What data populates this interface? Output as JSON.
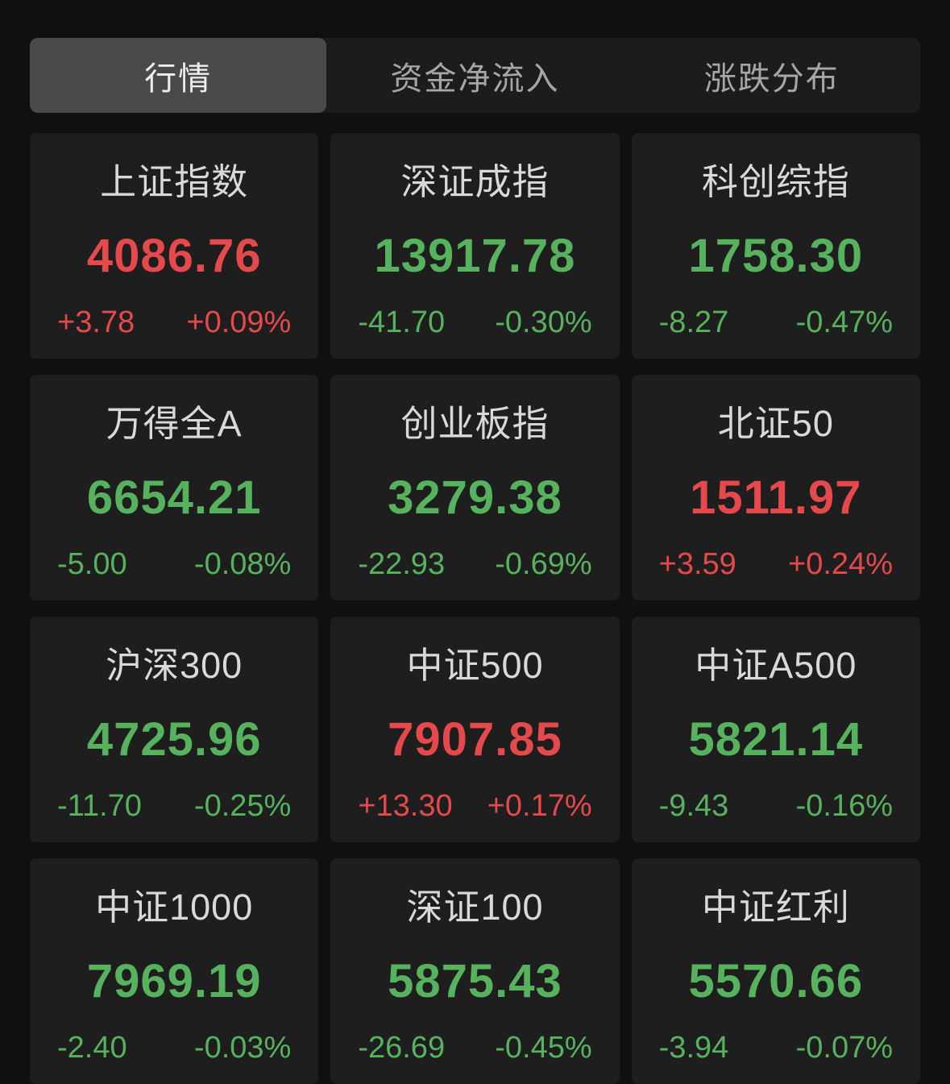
{
  "colors": {
    "up": "#e6494b",
    "down": "#57b25e",
    "card_bg": "#1e1e1e",
    "page_bg": "#101010",
    "tab_selected_bg": "#4a4a4a"
  },
  "tabs": [
    {
      "label": "行情",
      "selected": true
    },
    {
      "label": "资金净流入",
      "selected": false
    },
    {
      "label": "涨跌分布",
      "selected": false
    }
  ],
  "cards": [
    {
      "name": "上证指数",
      "value": "4086.76",
      "change": "+3.78",
      "change_pct": "+0.09%",
      "direction": "up"
    },
    {
      "name": "深证成指",
      "value": "13917.78",
      "change": "-41.70",
      "change_pct": "-0.30%",
      "direction": "down"
    },
    {
      "name": "科创综指",
      "value": "1758.30",
      "change": "-8.27",
      "change_pct": "-0.47%",
      "direction": "down"
    },
    {
      "name": "万得全A",
      "value": "6654.21",
      "change": "-5.00",
      "change_pct": "-0.08%",
      "direction": "down"
    },
    {
      "name": "创业板指",
      "value": "3279.38",
      "change": "-22.93",
      "change_pct": "-0.69%",
      "direction": "down"
    },
    {
      "name": "北证50",
      "value": "1511.97",
      "change": "+3.59",
      "change_pct": "+0.24%",
      "direction": "up"
    },
    {
      "name": "沪深300",
      "value": "4725.96",
      "change": "-11.70",
      "change_pct": "-0.25%",
      "direction": "down"
    },
    {
      "name": "中证500",
      "value": "7907.85",
      "change": "+13.30",
      "change_pct": "+0.17%",
      "direction": "up"
    },
    {
      "name": "中证A500",
      "value": "5821.14",
      "change": "-9.43",
      "change_pct": "-0.16%",
      "direction": "down"
    },
    {
      "name": "中证1000",
      "value": "7969.19",
      "change": "-2.40",
      "change_pct": "-0.03%",
      "direction": "down"
    },
    {
      "name": "深证100",
      "value": "5875.43",
      "change": "-26.69",
      "change_pct": "-0.45%",
      "direction": "down"
    },
    {
      "name": "中证红利",
      "value": "5570.66",
      "change": "-3.94",
      "change_pct": "-0.07%",
      "direction": "down"
    }
  ]
}
